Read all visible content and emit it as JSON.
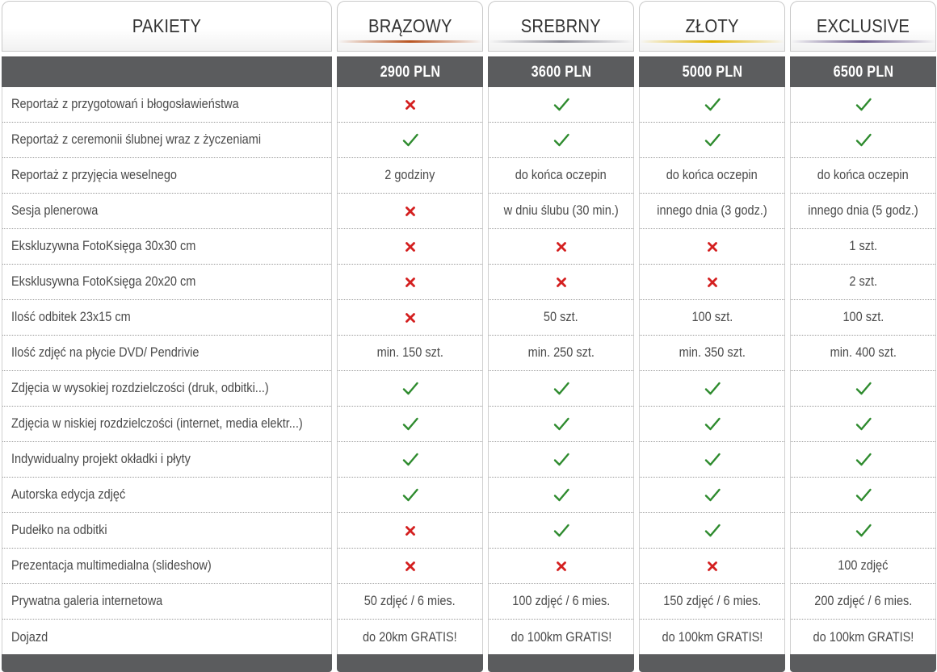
{
  "header": {
    "label_column": "PAKIETY",
    "packages": [
      {
        "name": "BRĄZOWY",
        "price": "2900 PLN",
        "accent": "#b8531f"
      },
      {
        "name": "SREBRNY",
        "price": "3600 PLN",
        "accent": "#8f8f9a"
      },
      {
        "name": "ZŁOTY",
        "price": "5000 PLN",
        "accent": "#e0b400"
      },
      {
        "name": "EXCLUSIVE",
        "price": "6500 PLN",
        "accent": "#6a5a8c"
      }
    ]
  },
  "colors": {
    "check": "#2e8b2e",
    "cross": "#d42020",
    "band": "#5b5c5e"
  },
  "rows": [
    {
      "feature": "Reportaż z przygotowań i błogosławieństwa",
      "values": [
        "cross-icon",
        "check-icon",
        "check-icon",
        "check-icon"
      ]
    },
    {
      "feature": "Reportaż z ceremonii ślubnej wraz z życzeniami",
      "values": [
        "check-icon",
        "check-icon",
        "check-icon",
        "check-icon"
      ]
    },
    {
      "feature": "Reportaż z przyjęcia weselnego",
      "values": [
        "2 godziny",
        "do końca oczepin",
        "do końca oczepin",
        "do końca oczepin"
      ]
    },
    {
      "feature": "Sesja plenerowa",
      "values": [
        "cross-icon",
        "w dniu ślubu (30 min.)",
        "innego dnia (3 godz.)",
        "innego dnia (5 godz.)"
      ]
    },
    {
      "feature": "Ekskluzywna FotoKsięga 30x30 cm",
      "values": [
        "cross-icon",
        "cross-icon",
        "cross-icon",
        "1 szt."
      ]
    },
    {
      "feature": "Eksklusywna FotoKsięga 20x20 cm",
      "values": [
        "cross-icon",
        "cross-icon",
        "cross-icon",
        "2 szt."
      ]
    },
    {
      "feature": "Ilość odbitek 23x15 cm",
      "values": [
        "cross-icon",
        "50 szt.",
        "100 szt.",
        "100 szt."
      ]
    },
    {
      "feature": "Ilość zdjęć na płycie DVD/ Pendrivie",
      "values": [
        "min. 150 szt.",
        "min. 250 szt.",
        "min. 350 szt.",
        "min. 400 szt."
      ]
    },
    {
      "feature": "Zdjęcia w wysokiej rozdzielczości (druk, odbitki...)",
      "values": [
        "check-icon",
        "check-icon",
        "check-icon",
        "check-icon"
      ]
    },
    {
      "feature": "Zdjęcia w niskiej rozdzielczości (internet, media elektr...)",
      "values": [
        "check-icon",
        "check-icon",
        "check-icon",
        "check-icon"
      ]
    },
    {
      "feature": "Indywidualny projekt okładki i płyty",
      "values": [
        "check-icon",
        "check-icon",
        "check-icon",
        "check-icon"
      ]
    },
    {
      "feature": "Autorska edycja zdjęć",
      "values": [
        "check-icon",
        "check-icon",
        "check-icon",
        "check-icon"
      ]
    },
    {
      "feature": "Pudełko na odbitki",
      "values": [
        "cross-icon",
        "check-icon",
        "check-icon",
        "check-icon"
      ]
    },
    {
      "feature": "Prezentacja multimedialna (slideshow)",
      "values": [
        "cross-icon",
        "cross-icon",
        "cross-icon",
        "100 zdjęć"
      ]
    },
    {
      "feature": "Prywatna galeria internetowa",
      "values": [
        "50 zdjęć / 6 mies.",
        "100 zdjęć / 6 mies.",
        "150 zdjęć / 6 mies.",
        "200 zdjęć / 6 mies."
      ]
    },
    {
      "feature": "Dojazd",
      "values": [
        "do 20km GRATIS!",
        "do 100km GRATIS!",
        "do 100km GRATIS!",
        "do 100km GRATIS!"
      ]
    }
  ]
}
